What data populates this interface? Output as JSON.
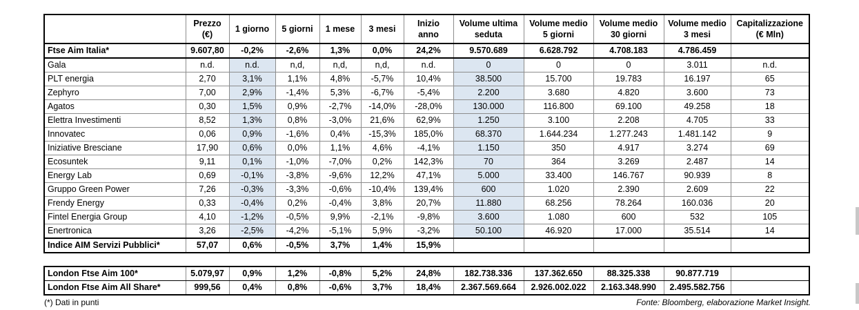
{
  "header": {
    "columns": [
      "Prezzo (€)",
      "1 giorno",
      "5 giorni",
      "1 mese",
      "3 mesi",
      "Inizio anno",
      "Volume ultima seduta",
      "Volume medio 5 giorni",
      "Volume medio 30 giorni",
      "Volume medio 3 mesi",
      "Capitalizzazione (€ Mln)"
    ]
  },
  "total_row": {
    "name": "Ftse Aim Italia*",
    "values": [
      "9.607,80",
      "-0,2%",
      "-2,6%",
      "1,3%",
      "0,0%",
      "24,2%",
      "9.570.689",
      "6.628.792",
      "4.708.183",
      "4.786.459",
      ""
    ]
  },
  "rows": [
    {
      "name": "Gala",
      "values": [
        "n.d.",
        "n.d.",
        "n,d,",
        "n,d,",
        "n,d,",
        "n.d.",
        "0",
        "0",
        "0",
        "3.011",
        "n.d."
      ]
    },
    {
      "name": "PLT energia",
      "values": [
        "2,70",
        "3,1%",
        "1,1%",
        "4,8%",
        "-5,7%",
        "10,4%",
        "38.500",
        "15.700",
        "19.783",
        "16.197",
        "65"
      ]
    },
    {
      "name": "Zephyro",
      "values": [
        "7,00",
        "2,9%",
        "-1,4%",
        "5,3%",
        "-6,7%",
        "-5,4%",
        "2.200",
        "3.680",
        "4.820",
        "3.600",
        "73"
      ]
    },
    {
      "name": "Agatos",
      "values": [
        "0,30",
        "1,5%",
        "0,9%",
        "-2,7%",
        "-14,0%",
        "-28,0%",
        "130.000",
        "116.800",
        "69.100",
        "49.258",
        "18"
      ]
    },
    {
      "name": "Elettra Investimenti",
      "values": [
        "8,52",
        "1,3%",
        "0,8%",
        "-3,0%",
        "21,6%",
        "62,9%",
        "1.250",
        "3.100",
        "2.208",
        "4.705",
        "33"
      ]
    },
    {
      "name": "Innovatec",
      "values": [
        "0,06",
        "0,9%",
        "-1,6%",
        "0,4%",
        "-15,3%",
        "185,0%",
        "68.370",
        "1.644.234",
        "1.277.243",
        "1.481.142",
        "9"
      ]
    },
    {
      "name": "Iniziative Bresciane",
      "values": [
        "17,90",
        "0,6%",
        "0,0%",
        "1,1%",
        "4,6%",
        "-4,1%",
        "1.150",
        "350",
        "4.917",
        "3.274",
        "69"
      ]
    },
    {
      "name": "Ecosuntek",
      "values": [
        "9,11",
        "0,1%",
        "-1,0%",
        "-7,0%",
        "0,2%",
        "142,3%",
        "70",
        "364",
        "3.269",
        "2.487",
        "14"
      ]
    },
    {
      "name": "Energy Lab",
      "values": [
        "0,69",
        "-0,1%",
        "-3,8%",
        "-9,6%",
        "12,2%",
        "47,1%",
        "5.000",
        "33.400",
        "146.767",
        "90.939",
        "8"
      ]
    },
    {
      "name": "Gruppo Green Power",
      "values": [
        "7,26",
        "-0,3%",
        "-3,3%",
        "-0,6%",
        "-10,4%",
        "139,4%",
        "600",
        "1.020",
        "2.390",
        "2.609",
        "22"
      ]
    },
    {
      "name": "Frendy Energy",
      "values": [
        "0,33",
        "-0,4%",
        "0,2%",
        "-0,4%",
        "3,8%",
        "20,7%",
        "11.880",
        "68.256",
        "78.264",
        "160.036",
        "20"
      ]
    },
    {
      "name": "Fintel Energia Group",
      "values": [
        "4,10",
        "-1,2%",
        "-0,5%",
        "9,9%",
        "-2,1%",
        "-9,8%",
        "3.600",
        "1.080",
        "600",
        "532",
        "105"
      ]
    },
    {
      "name": "Enertronica",
      "values": [
        "3,26",
        "-2,5%",
        "-4,2%",
        "-5,1%",
        "5,9%",
        "-3,2%",
        "50.100",
        "46.920",
        "17.000",
        "35.514",
        "14"
      ]
    }
  ],
  "index_row": {
    "name": "Indice AIM Servizi Pubblici*",
    "values": [
      "57,07",
      "0,6%",
      "-0,5%",
      "3,7%",
      "1,4%",
      "15,9%",
      "",
      "",
      "",
      "",
      ""
    ]
  },
  "london_rows": [
    {
      "name": "London Ftse Aim 100*",
      "values": [
        "5.079,97",
        "0,9%",
        "1,2%",
        "-0,8%",
        "5,2%",
        "24,8%",
        "182.738.336",
        "137.362.650",
        "88.325.338",
        "90.877.719",
        ""
      ]
    },
    {
      "name": "London Ftse Aim All Share*",
      "values": [
        "999,56",
        "0,4%",
        "0,8%",
        "-0,6%",
        "3,7%",
        "18,4%",
        "2.367.569.664",
        "2.926.002.022",
        "2.163.348.990",
        "2.495.582.756",
        ""
      ]
    }
  ],
  "footer": {
    "note": "(*) Dati in punti",
    "source": "Fonte: Bloomberg, elaborazione Market Insight."
  },
  "colors": {
    "highlight": "#dce6f1"
  }
}
